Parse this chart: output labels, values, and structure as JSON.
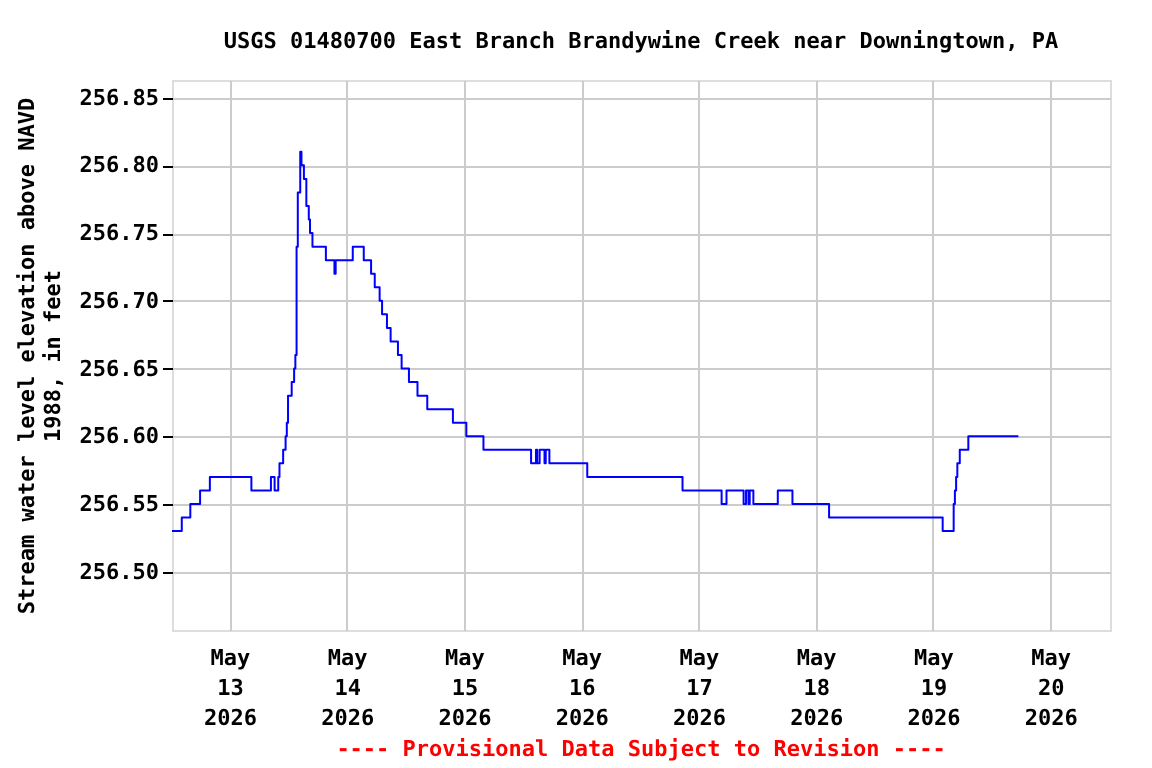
{
  "chart_data": {
    "type": "step",
    "title": "USGS 01480700 East Branch Brandywine Creek near Downingtown, PA",
    "ylabel": "Stream water level elevation above NAVD\n1988, in feet",
    "annotations": [
      "---- Provisional Data Subject to Revision ----"
    ],
    "x": [
      "2026-05-12T12:15",
      "2026-05-12T14:15",
      "2026-05-12T16:00",
      "2026-05-12T18:00",
      "2026-05-12T20:00",
      "2026-05-13T04:30",
      "2026-05-13T08:30",
      "2026-05-13T09:15",
      "2026-05-13T10:00",
      "2026-05-13T10:15",
      "2026-05-13T11:00",
      "2026-05-13T11:30",
      "2026-05-13T11:45",
      "2026-05-13T12:00",
      "2026-05-13T12:45",
      "2026-05-13T13:15",
      "2026-05-13T13:30",
      "2026-05-13T13:45",
      "2026-05-13T14:00",
      "2026-05-13T14:30",
      "2026-05-13T14:45",
      "2026-05-13T15:15",
      "2026-05-13T15:45",
      "2026-05-13T16:15",
      "2026-05-13T16:30",
      "2026-05-13T17:00",
      "2026-05-13T19:45",
      "2026-05-13T21:30",
      "2026-05-13T21:45",
      "2026-05-14T01:15",
      "2026-05-14T03:30",
      "2026-05-14T05:00",
      "2026-05-14T05:45",
      "2026-05-14T06:45",
      "2026-05-14T07:15",
      "2026-05-14T08:15",
      "2026-05-14T09:00",
      "2026-05-14T10:30",
      "2026-05-14T11:15",
      "2026-05-14T12:45",
      "2026-05-14T14:30",
      "2026-05-14T16:30",
      "2026-05-14T21:45",
      "2026-05-15T00:30",
      "2026-05-15T04:00",
      "2026-05-15T13:45",
      "2026-05-15T14:45",
      "2026-05-15T15:00",
      "2026-05-15T15:30",
      "2026-05-15T16:30",
      "2026-05-15T16:45",
      "2026-05-15T17:30",
      "2026-05-16T01:15",
      "2026-05-16T20:45",
      "2026-05-17T04:45",
      "2026-05-17T05:45",
      "2026-05-17T09:15",
      "2026-05-17T09:45",
      "2026-05-17T10:15",
      "2026-05-17T10:30",
      "2026-05-17T11:15",
      "2026-05-17T16:15",
      "2026-05-17T19:15",
      "2026-05-18T02:45",
      "2026-05-19T02:00",
      "2026-05-19T04:15",
      "2026-05-19T04:30",
      "2026-05-19T04:45",
      "2026-05-19T05:00",
      "2026-05-19T05:30",
      "2026-05-19T07:15",
      "2026-05-19T17:30"
    ],
    "series": [
      {
        "color": "#0000ff",
        "values": [
          256.53,
          256.54,
          256.55,
          256.56,
          256.57,
          256.56,
          256.57,
          256.56,
          256.57,
          256.58,
          256.59,
          256.6,
          256.61,
          256.63,
          256.64,
          256.65,
          256.66,
          256.74,
          256.78,
          256.81,
          256.8,
          256.79,
          256.77,
          256.76,
          256.75,
          256.74,
          256.73,
          256.72,
          256.73,
          256.74,
          256.73,
          256.72,
          256.71,
          256.7,
          256.69,
          256.68,
          256.67,
          256.66,
          256.65,
          256.64,
          256.63,
          256.62,
          256.61,
          256.6,
          256.59,
          256.58,
          256.59,
          256.58,
          256.59,
          256.58,
          256.59,
          256.58,
          256.57,
          256.56,
          256.55,
          256.56,
          256.55,
          256.56,
          256.55,
          256.56,
          256.55,
          256.56,
          256.55,
          256.54,
          256.53,
          256.55,
          256.56,
          256.57,
          256.58,
          256.59,
          256.6,
          256.6
        ]
      }
    ],
    "xlim": [
      "2026-05-12T12:15",
      "2026-05-20T12:15"
    ],
    "xticks": [
      {
        "value": "2026-05-13",
        "label": "May\n13\n2026"
      },
      {
        "value": "2026-05-14",
        "label": "May\n14\n2026"
      },
      {
        "value": "2026-05-15",
        "label": "May\n15\n2026"
      },
      {
        "value": "2026-05-16",
        "label": "May\n16\n2026"
      },
      {
        "value": "2026-05-17",
        "label": "May\n17\n2026"
      },
      {
        "value": "2026-05-18",
        "label": "May\n18\n2026"
      },
      {
        "value": "2026-05-19",
        "label": "May\n19\n2026"
      },
      {
        "value": "2026-05-20",
        "label": "May\n20\n2026"
      }
    ],
    "ylim": [
      256.457,
      256.863
    ],
    "yticks": [
      {
        "value": 256.5,
        "label": "256.50"
      },
      {
        "value": 256.55,
        "label": "256.55"
      },
      {
        "value": 256.6,
        "label": "256.60"
      },
      {
        "value": 256.65,
        "label": "256.65"
      },
      {
        "value": 256.7,
        "label": "256.70"
      },
      {
        "value": 256.75,
        "label": "256.75"
      },
      {
        "value": 256.8,
        "label": "256.80"
      },
      {
        "value": 256.85,
        "label": "256.85"
      }
    ],
    "grid": true
  }
}
